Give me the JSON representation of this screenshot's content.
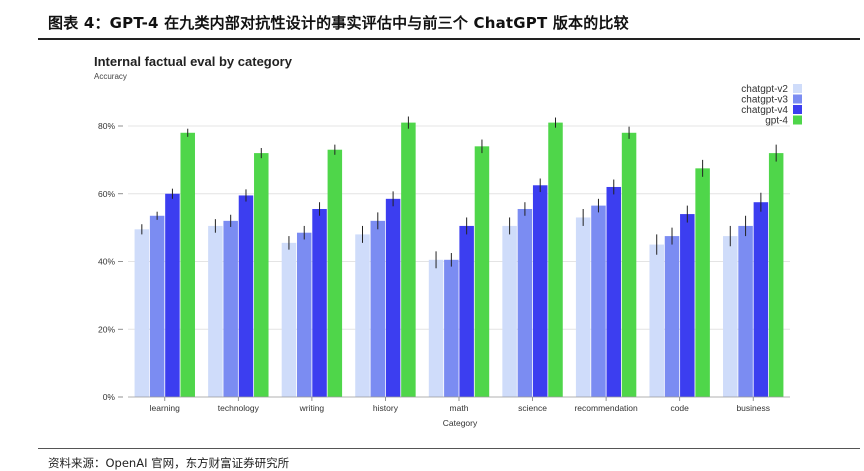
{
  "caption": "图表 4：GPT-4 在九类内部对抗性设计的事实评估中与前三个 ChatGPT 版本的比较",
  "source": "资料来源：OpenAI 官网，东方财富证券研究所",
  "chart_data": {
    "type": "bar",
    "title": "Internal factual eval by category",
    "ylabel": "Accuracy",
    "xlabel": "Category",
    "ylim": [
      0,
      0.9
    ],
    "yticks": [
      0,
      0.2,
      0.4,
      0.6,
      0.8
    ],
    "ytick_labels": [
      "0%",
      "20%",
      "40%",
      "60%",
      "80%"
    ],
    "categories": [
      "learning",
      "technology",
      "writing",
      "history",
      "math",
      "science",
      "recommendation",
      "code",
      "business"
    ],
    "legend_position": "top-right",
    "series": [
      {
        "name": "chatgpt-v2",
        "color": "#cfdcfa",
        "values": [
          0.495,
          0.505,
          0.455,
          0.48,
          0.405,
          0.505,
          0.53,
          0.45,
          0.475
        ],
        "errors": [
          0.015,
          0.02,
          0.02,
          0.025,
          0.025,
          0.025,
          0.025,
          0.03,
          0.03
        ]
      },
      {
        "name": "chatgpt-v3",
        "color": "#7b8cf2",
        "values": [
          0.535,
          0.52,
          0.485,
          0.52,
          0.405,
          0.555,
          0.565,
          0.475,
          0.505
        ],
        "errors": [
          0.012,
          0.018,
          0.02,
          0.025,
          0.02,
          0.02,
          0.02,
          0.025,
          0.03
        ]
      },
      {
        "name": "chatgpt-v4",
        "color": "#3c3ef0",
        "values": [
          0.6,
          0.595,
          0.555,
          0.585,
          0.505,
          0.625,
          0.62,
          0.54,
          0.575
        ],
        "errors": [
          0.015,
          0.018,
          0.02,
          0.022,
          0.025,
          0.02,
          0.022,
          0.025,
          0.028
        ]
      },
      {
        "name": "gpt-4",
        "color": "#4fd64a",
        "values": [
          0.78,
          0.72,
          0.73,
          0.81,
          0.74,
          0.81,
          0.78,
          0.675,
          0.72
        ],
        "errors": [
          0.012,
          0.015,
          0.015,
          0.018,
          0.02,
          0.015,
          0.018,
          0.025,
          0.025
        ]
      }
    ]
  }
}
